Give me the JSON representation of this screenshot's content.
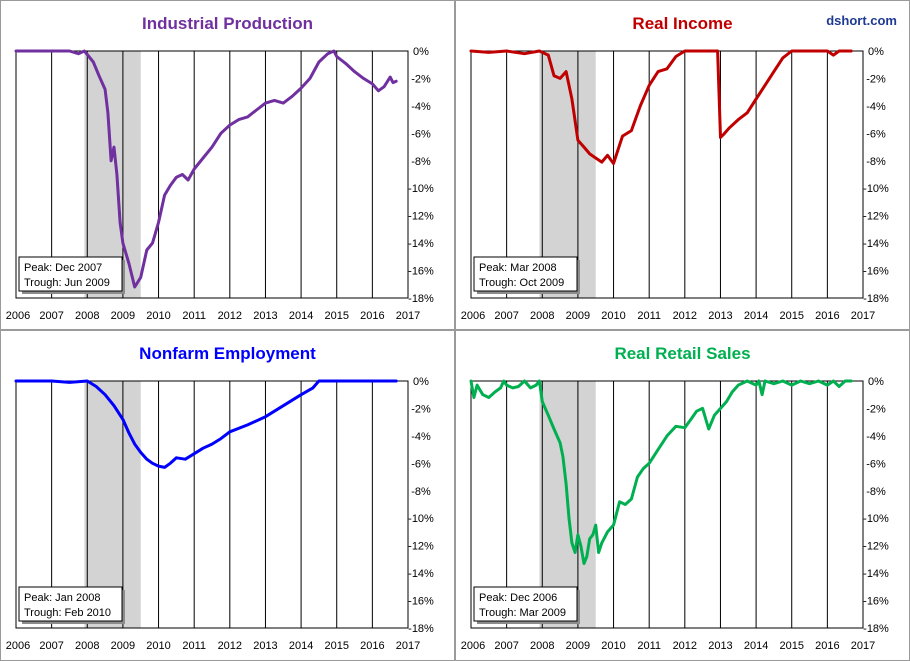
{
  "brand": "dshort.com",
  "chart_data": [
    {
      "type": "line",
      "title": "Industrial Production",
      "color": "#7030a0",
      "x_ticks": [
        "2006",
        "2007",
        "2008",
        "2009",
        "2010",
        "2011",
        "2012",
        "2013",
        "2014",
        "2015",
        "2016",
        "2017"
      ],
      "y_ticks": [
        "0%",
        "-2%",
        "-4%",
        "-6%",
        "-8%",
        "-10%",
        "-12%",
        "-14%",
        "-16%",
        "-18%"
      ],
      "xlim": [
        2006,
        2017
      ],
      "ylim": [
        -18,
        0
      ],
      "y_unit": "%",
      "grid": true,
      "recession_shade": [
        2007.92,
        2009.5
      ],
      "annotation": {
        "peak": "Peak: Dec 2007",
        "trough": "Trough: Jun 2009"
      },
      "annotation_position": "bottom-left",
      "x": [
        2006.0,
        2006.5,
        2007.0,
        2007.5,
        2007.75,
        2007.92,
        2008.17,
        2008.33,
        2008.5,
        2008.58,
        2008.67,
        2008.75,
        2008.83,
        2008.92,
        2009.0,
        2009.17,
        2009.33,
        2009.5,
        2009.67,
        2009.83,
        2010.0,
        2010.17,
        2010.33,
        2010.5,
        2010.67,
        2010.83,
        2011.0,
        2011.25,
        2011.5,
        2011.75,
        2012.0,
        2012.25,
        2012.5,
        2012.75,
        2013.0,
        2013.25,
        2013.5,
        2013.75,
        2014.0,
        2014.25,
        2014.5,
        2014.75,
        2014.92,
        2015.0,
        2015.25,
        2015.5,
        2015.75,
        2016.0,
        2016.17,
        2016.33,
        2016.5,
        2016.58,
        2016.67
      ],
      "y": [
        0,
        0,
        0,
        0,
        -0.2,
        0,
        -0.8,
        -1.8,
        -2.8,
        -4.5,
        -8.0,
        -7.0,
        -9.0,
        -12.5,
        -14.0,
        -15.5,
        -17.2,
        -16.5,
        -14.5,
        -14.0,
        -12.5,
        -10.5,
        -9.8,
        -9.2,
        -9.0,
        -9.4,
        -8.6,
        -7.8,
        -7.0,
        -6.0,
        -5.4,
        -5.0,
        -4.8,
        -4.3,
        -3.8,
        -3.6,
        -3.8,
        -3.3,
        -2.7,
        -2.0,
        -0.8,
        -0.2,
        0,
        -0.4,
        -0.9,
        -1.5,
        -2.0,
        -2.4,
        -2.9,
        -2.6,
        -1.9,
        -2.3,
        -2.2
      ]
    },
    {
      "type": "line",
      "title": "Real Income",
      "color": "#c00000",
      "x_ticks": [
        "2006",
        "2007",
        "2008",
        "2009",
        "2010",
        "2011",
        "2012",
        "2013",
        "2014",
        "2015",
        "2016",
        "2017"
      ],
      "y_ticks": [
        "0%",
        "-2%",
        "-4%",
        "-6%",
        "-8%",
        "-10%",
        "-12%",
        "-14%",
        "-16%",
        "-18%"
      ],
      "xlim": [
        2006,
        2017
      ],
      "ylim": [
        -18,
        0
      ],
      "y_unit": "%",
      "grid": true,
      "recession_shade": [
        2007.92,
        2009.5
      ],
      "annotation": {
        "peak": "Peak: Mar 2008",
        "trough": "Trough: Oct 2009"
      },
      "annotation_position": "bottom-left",
      "x": [
        2006.0,
        2006.5,
        2007.0,
        2007.5,
        2007.92,
        2008.17,
        2008.33,
        2008.5,
        2008.67,
        2008.83,
        2009.0,
        2009.17,
        2009.33,
        2009.5,
        2009.67,
        2009.83,
        2010.0,
        2010.25,
        2010.5,
        2010.75,
        2011.0,
        2011.25,
        2011.5,
        2011.75,
        2012.0,
        2012.25,
        2012.5,
        2012.75,
        2012.92,
        2013.0,
        2013.08,
        2013.25,
        2013.5,
        2013.75,
        2014.0,
        2014.25,
        2014.5,
        2014.75,
        2015.0,
        2015.5,
        2016.0,
        2016.17,
        2016.33,
        2016.67
      ],
      "y": [
        0,
        -0.1,
        0,
        -0.2,
        0,
        -0.3,
        -1.8,
        -2.0,
        -1.5,
        -3.5,
        -6.5,
        -7.0,
        -7.5,
        -7.8,
        -8.1,
        -7.6,
        -8.2,
        -6.2,
        -5.8,
        -4.0,
        -2.5,
        -1.5,
        -1.3,
        -0.4,
        0,
        0,
        0,
        0,
        0,
        -6.3,
        -6.1,
        -5.6,
        -5.0,
        -4.5,
        -3.5,
        -2.5,
        -1.5,
        -0.5,
        0,
        0,
        0,
        -0.3,
        0,
        0
      ]
    },
    {
      "type": "line",
      "title": "Nonfarm Employment",
      "color": "#0000ff",
      "x_ticks": [
        "2006",
        "2007",
        "2008",
        "2009",
        "2010",
        "2011",
        "2012",
        "2013",
        "2014",
        "2015",
        "2016",
        "2017"
      ],
      "y_ticks": [
        "0%",
        "-2%",
        "-4%",
        "-6%",
        "-8%",
        "-10%",
        "-12%",
        "-14%",
        "-16%",
        "-18%"
      ],
      "xlim": [
        2006,
        2017
      ],
      "ylim": [
        -18,
        0
      ],
      "y_unit": "%",
      "grid": true,
      "recession_shade": [
        2007.92,
        2009.5
      ],
      "annotation": {
        "peak": "Peak: Jan 2008",
        "trough": "Trough: Feb 2010"
      },
      "annotation_position": "bottom-left",
      "x": [
        2006.0,
        2007.0,
        2007.5,
        2008.0,
        2008.25,
        2008.5,
        2008.75,
        2009.0,
        2009.17,
        2009.33,
        2009.5,
        2009.67,
        2009.83,
        2010.0,
        2010.17,
        2010.33,
        2010.5,
        2010.75,
        2011.0,
        2011.25,
        2011.5,
        2011.75,
        2012.0,
        2012.5,
        2013.0,
        2013.5,
        2014.0,
        2014.33,
        2014.5,
        2015.0,
        2016.0,
        2016.67
      ],
      "y": [
        0,
        0,
        -0.1,
        0,
        -0.4,
        -1.0,
        -1.8,
        -2.8,
        -3.8,
        -4.6,
        -5.2,
        -5.7,
        -6.0,
        -6.2,
        -6.3,
        -6.0,
        -5.6,
        -5.7,
        -5.3,
        -4.9,
        -4.6,
        -4.2,
        -3.7,
        -3.2,
        -2.6,
        -1.8,
        -1.0,
        -0.5,
        0,
        0,
        0,
        0
      ]
    },
    {
      "type": "line",
      "title": "Real Retail Sales",
      "color": "#00b050",
      "x_ticks": [
        "2006",
        "2007",
        "2008",
        "2009",
        "2010",
        "2011",
        "2012",
        "2013",
        "2014",
        "2015",
        "2016",
        "2017"
      ],
      "y_ticks": [
        "0%",
        "-2%",
        "-4%",
        "-6%",
        "-8%",
        "-10%",
        "-12%",
        "-14%",
        "-16%",
        "-18%"
      ],
      "xlim": [
        2006,
        2017
      ],
      "ylim": [
        -18,
        0
      ],
      "y_unit": "%",
      "grid": true,
      "recession_shade": [
        2007.92,
        2009.5
      ],
      "annotation": {
        "peak": "Peak: Dec 2006",
        "trough": "Trough: Mar 2009"
      },
      "annotation_position": "bottom-left",
      "x": [
        2006.0,
        2006.08,
        2006.17,
        2006.33,
        2006.5,
        2006.67,
        2006.83,
        2006.92,
        2007.0,
        2007.17,
        2007.33,
        2007.5,
        2007.67,
        2007.83,
        2007.92,
        2008.0,
        2008.17,
        2008.33,
        2008.5,
        2008.58,
        2008.67,
        2008.75,
        2008.83,
        2008.92,
        2009.0,
        2009.08,
        2009.17,
        2009.25,
        2009.33,
        2009.42,
        2009.5,
        2009.58,
        2009.67,
        2009.83,
        2010.0,
        2010.17,
        2010.33,
        2010.5,
        2010.67,
        2010.83,
        2011.0,
        2011.25,
        2011.5,
        2011.75,
        2012.0,
        2012.17,
        2012.33,
        2012.5,
        2012.67,
        2012.83,
        2013.0,
        2013.17,
        2013.33,
        2013.5,
        2013.75,
        2014.0,
        2014.08,
        2014.17,
        2014.25,
        2014.5,
        2014.75,
        2015.0,
        2015.25,
        2015.5,
        2015.75,
        2016.0,
        2016.17,
        2016.33,
        2016.5,
        2016.67
      ],
      "y": [
        0,
        -1.2,
        -0.3,
        -1.0,
        -1.2,
        -0.8,
        -0.5,
        0,
        -0.3,
        -0.5,
        -0.4,
        0,
        -0.5,
        -0.3,
        0,
        -1.5,
        -2.5,
        -3.5,
        -4.5,
        -5.5,
        -7.5,
        -10.0,
        -11.8,
        -12.5,
        -11.2,
        -12.0,
        -13.3,
        -12.8,
        -11.5,
        -11.2,
        -10.5,
        -12.5,
        -11.8,
        -11.0,
        -10.5,
        -8.8,
        -9.0,
        -8.6,
        -7.0,
        -6.4,
        -6.0,
        -5.0,
        -4.0,
        -3.3,
        -3.4,
        -2.8,
        -2.2,
        -2.0,
        -3.5,
        -2.5,
        -2.0,
        -1.5,
        -0.8,
        -0.3,
        0,
        -0.3,
        0,
        -1.0,
        0,
        -0.2,
        0,
        -0.3,
        0,
        -0.2,
        0,
        -0.3,
        0,
        -0.4,
        0,
        0
      ]
    }
  ]
}
